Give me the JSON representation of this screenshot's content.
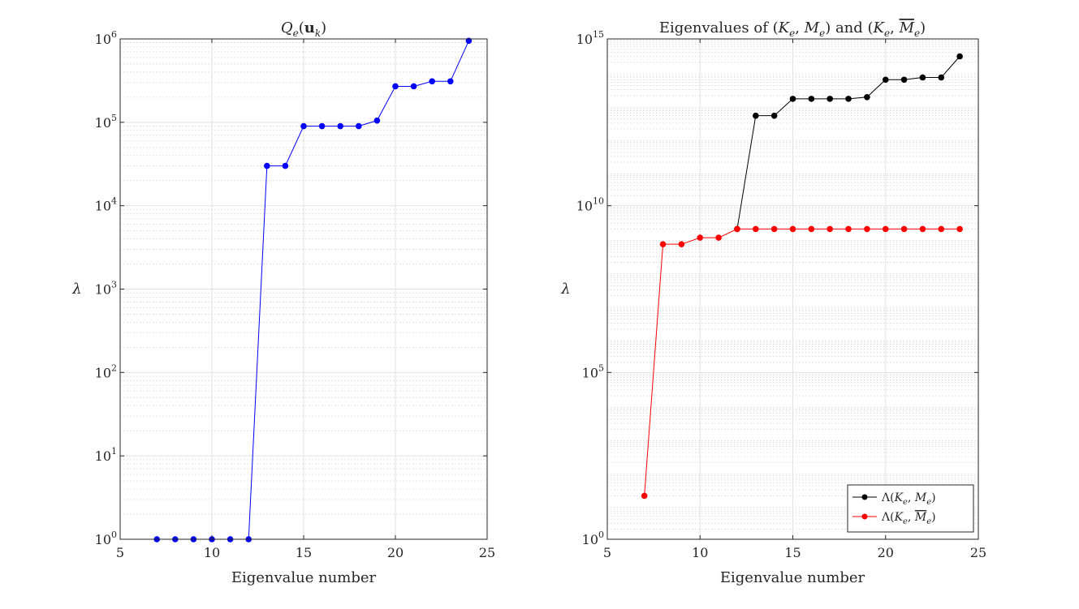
{
  "chart_data": [
    {
      "type": "line",
      "title": "Q_e(u_k)",
      "title_parts": {
        "q": "Q",
        "sub_e": "e",
        "open": "(",
        "u": "u",
        "sub_k": "k",
        "close": ")"
      },
      "xlabel": "Eigenvalue number",
      "ylabel": "λ",
      "yscale": "log",
      "xlim": [
        5,
        25
      ],
      "ylim": [
        1,
        1000000
      ],
      "xticks": [
        5,
        10,
        15,
        20,
        25
      ],
      "xtick_labels": [
        "5",
        "10",
        "15",
        "20",
        "25"
      ],
      "ytick_exponents": [
        0,
        1,
        2,
        3,
        4,
        5,
        6
      ],
      "ytick_base": "10",
      "grid": true,
      "series": [
        {
          "name": "Q_e(u_k)",
          "color": "#0000ff",
          "x": [
            7,
            8,
            9,
            10,
            11,
            12,
            13,
            14,
            15,
            16,
            17,
            18,
            19,
            20,
            21,
            22,
            23,
            24
          ],
          "values": [
            1,
            1,
            1,
            1,
            1,
            1,
            30000,
            30000,
            90000,
            90000,
            90000,
            90000,
            105000,
            270000,
            270000,
            310000,
            310000,
            950000
          ]
        }
      ]
    },
    {
      "type": "line",
      "title": "Eigenvalues of (K_e, M_e) and (K_e, M̄_e)",
      "title_parts": {
        "lead": "Eigenvalues of ",
        "and": " and "
      },
      "xlabel": "Eigenvalue number",
      "ylabel": "λ",
      "yscale": "log",
      "xlim": [
        5,
        25
      ],
      "ylim": [
        1,
        1000000000000000
      ],
      "xticks": [
        5,
        10,
        15,
        20,
        25
      ],
      "xtick_labels": [
        "5",
        "10",
        "15",
        "20",
        "25"
      ],
      "ytick_exponents": [
        0,
        5,
        10,
        15
      ],
      "ytick_base": "10",
      "grid": true,
      "legend": {
        "placement": "bottom-right"
      },
      "series": [
        {
          "name": "Λ(K_e, M_e)",
          "color": "#000000",
          "x": [
            12,
            13,
            14,
            15,
            16,
            17,
            18,
            19,
            20,
            21,
            22,
            23,
            24
          ],
          "values": [
            2000000000,
            5000000000000,
            5000000000000,
            16000000000000,
            16000000000000,
            16000000000000,
            16000000000000,
            18000000000000,
            60000000000000,
            60000000000000,
            70000000000000,
            70000000000000,
            300000000000000
          ]
        },
        {
          "name": "Λ(K_e, M̄_e)",
          "color": "#ff0000",
          "x": [
            7,
            8,
            9,
            10,
            11,
            12,
            13,
            14,
            15,
            16,
            17,
            18,
            19,
            20,
            21,
            22,
            23,
            24
          ],
          "values": [
            20,
            700000000,
            700000000,
            1100000000,
            1100000000,
            2000000000,
            2000000000,
            2000000000,
            2000000000,
            2000000000,
            2000000000,
            2000000000,
            2000000000,
            2000000000,
            2000000000,
            2000000000,
            2000000000,
            2000000000
          ]
        }
      ]
    }
  ]
}
